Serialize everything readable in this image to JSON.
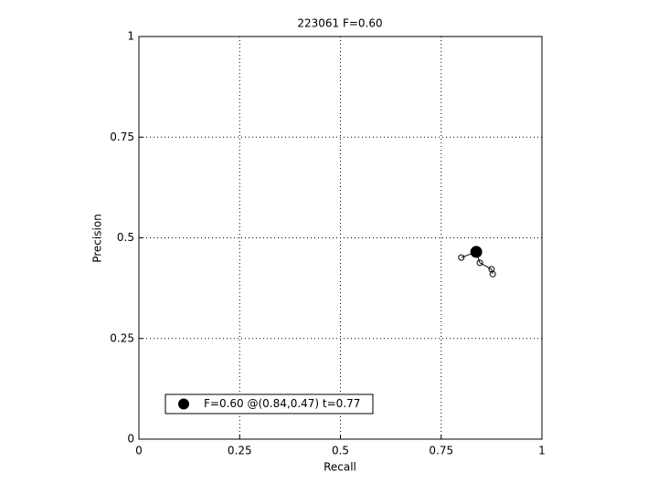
{
  "chart_data": {
    "type": "line",
    "title": "223061 F=0.60",
    "xlabel": "Recall",
    "ylabel": "Precision",
    "xlim": [
      0,
      1
    ],
    "ylim": [
      0,
      1
    ],
    "xticks": [
      0,
      0.25,
      0.5,
      0.75,
      1
    ],
    "yticks": [
      0,
      0.25,
      0.5,
      0.75,
      1
    ],
    "grid": true,
    "legend": "lower left",
    "series": [
      {
        "color": "#000000",
        "marker": "circle",
        "x": [
          0.8,
          0.837,
          0.846,
          0.875,
          0.878
        ],
        "values": [
          0.451,
          0.465,
          0.438,
          0.422,
          0.41
        ]
      },
      {
        "name": "F=0.60 @(0.84,0.47) t=0.77",
        "color": "#000000",
        "marker": "dot",
        "x": [
          0.837
        ],
        "values": [
          0.465
        ]
      }
    ]
  }
}
